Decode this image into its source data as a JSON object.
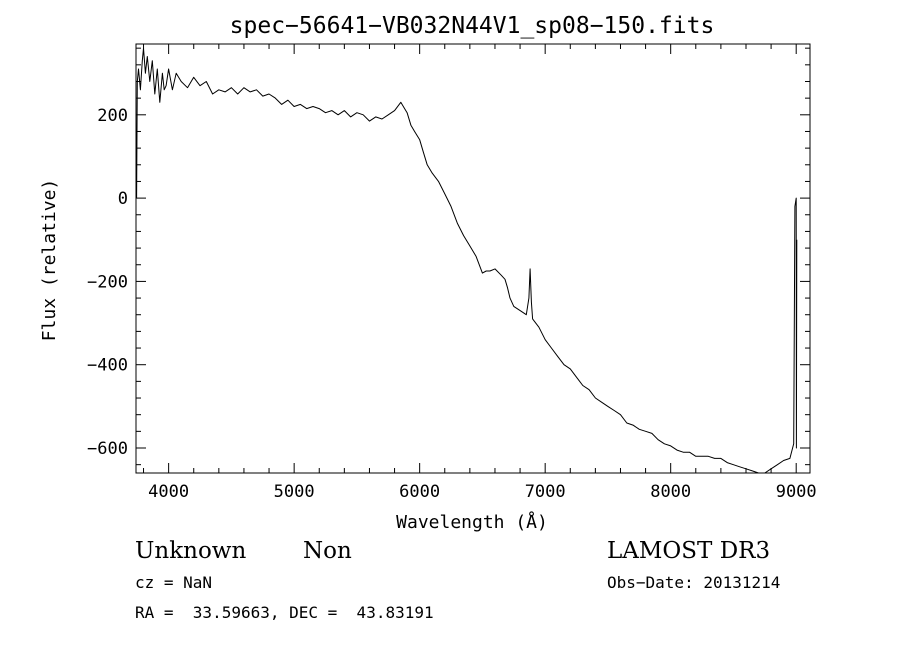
{
  "chart_data": {
    "type": "line",
    "title": "spec−56641−VB032N44V1_sp08−150.fits",
    "xlabel": "Wavelength (Å)",
    "ylabel": "Flux (relative)",
    "xlim": [
      3740,
      9110
    ],
    "ylim": [
      -660,
      370
    ],
    "xticks": [
      4000,
      5000,
      6000,
      7000,
      8000,
      9000
    ],
    "xtick_labels": [
      "4000",
      "5000",
      "6000",
      "7000",
      "8000",
      "9000"
    ],
    "yticks": [
      200,
      0,
      -200,
      -400,
      -600
    ],
    "ytick_labels": [
      "200",
      "0",
      "−200",
      "−400",
      "−600"
    ],
    "grid": false,
    "series": [
      {
        "name": "flux",
        "color": "#000000",
        "x": [
          3745,
          3750,
          3760,
          3775,
          3790,
          3800,
          3815,
          3830,
          3850,
          3870,
          3890,
          3910,
          3930,
          3950,
          3965,
          3980,
          4000,
          4030,
          4060,
          4100,
          4150,
          4200,
          4250,
          4300,
          4350,
          4400,
          4450,
          4500,
          4550,
          4600,
          4650,
          4700,
          4750,
          4800,
          4850,
          4900,
          4950,
          5000,
          5050,
          5100,
          5150,
          5200,
          5250,
          5300,
          5350,
          5400,
          5450,
          5500,
          5550,
          5600,
          5650,
          5700,
          5750,
          5800,
          5850,
          5880,
          5900,
          5930,
          5960,
          6000,
          6030,
          6060,
          6100,
          6150,
          6200,
          6250,
          6300,
          6350,
          6400,
          6450,
          6500,
          6530,
          6560,
          6600,
          6650,
          6680,
          6700,
          6720,
          6750,
          6800,
          6850,
          6870,
          6880,
          6890,
          6900,
          6950,
          7000,
          7050,
          7100,
          7150,
          7200,
          7250,
          7300,
          7350,
          7400,
          7450,
          7500,
          7550,
          7600,
          7650,
          7700,
          7750,
          7800,
          7850,
          7900,
          7950,
          8000,
          8050,
          8100,
          8150,
          8200,
          8250,
          8300,
          8350,
          8400,
          8450,
          8500,
          8550,
          8600,
          8650,
          8700,
          8750,
          8800,
          8850,
          8900,
          8950,
          8980,
          8990,
          9000,
          9002,
          9005
        ],
        "values": [
          0,
          280,
          310,
          260,
          330,
          360,
          300,
          340,
          280,
          330,
          250,
          310,
          230,
          300,
          260,
          270,
          310,
          260,
          300,
          280,
          265,
          290,
          270,
          280,
          250,
          260,
          255,
          265,
          250,
          265,
          255,
          260,
          245,
          250,
          240,
          225,
          235,
          220,
          225,
          215,
          220,
          215,
          205,
          210,
          200,
          210,
          195,
          205,
          200,
          185,
          195,
          190,
          200,
          210,
          230,
          215,
          205,
          175,
          160,
          140,
          110,
          80,
          60,
          40,
          10,
          -20,
          -60,
          -90,
          -115,
          -140,
          -180,
          -175,
          -175,
          -170,
          -185,
          -195,
          -215,
          -240,
          -260,
          -270,
          -280,
          -240,
          -170,
          -250,
          -290,
          -310,
          -340,
          -360,
          -380,
          -400,
          -410,
          -430,
          -450,
          -460,
          -480,
          -490,
          -500,
          -510,
          -520,
          -540,
          -545,
          -555,
          -560,
          -565,
          -580,
          -590,
          -595,
          -605,
          -610,
          -610,
          -620,
          -620,
          -620,
          -625,
          -625,
          -635,
          -640,
          -645,
          -650,
          -655,
          -660,
          -660,
          -650,
          -640,
          -630,
          -625,
          -590,
          -20,
          0,
          -600,
          -100
        ]
      }
    ],
    "annotations": {
      "object_class": "Unknown",
      "object_subclass": "Non",
      "survey": "LAMOST DR3",
      "redshift": "cz = NaN",
      "obs_date": "Obs−Date: 20131214",
      "coordinates": "RA =  33.59663, DEC =  43.83191"
    }
  }
}
